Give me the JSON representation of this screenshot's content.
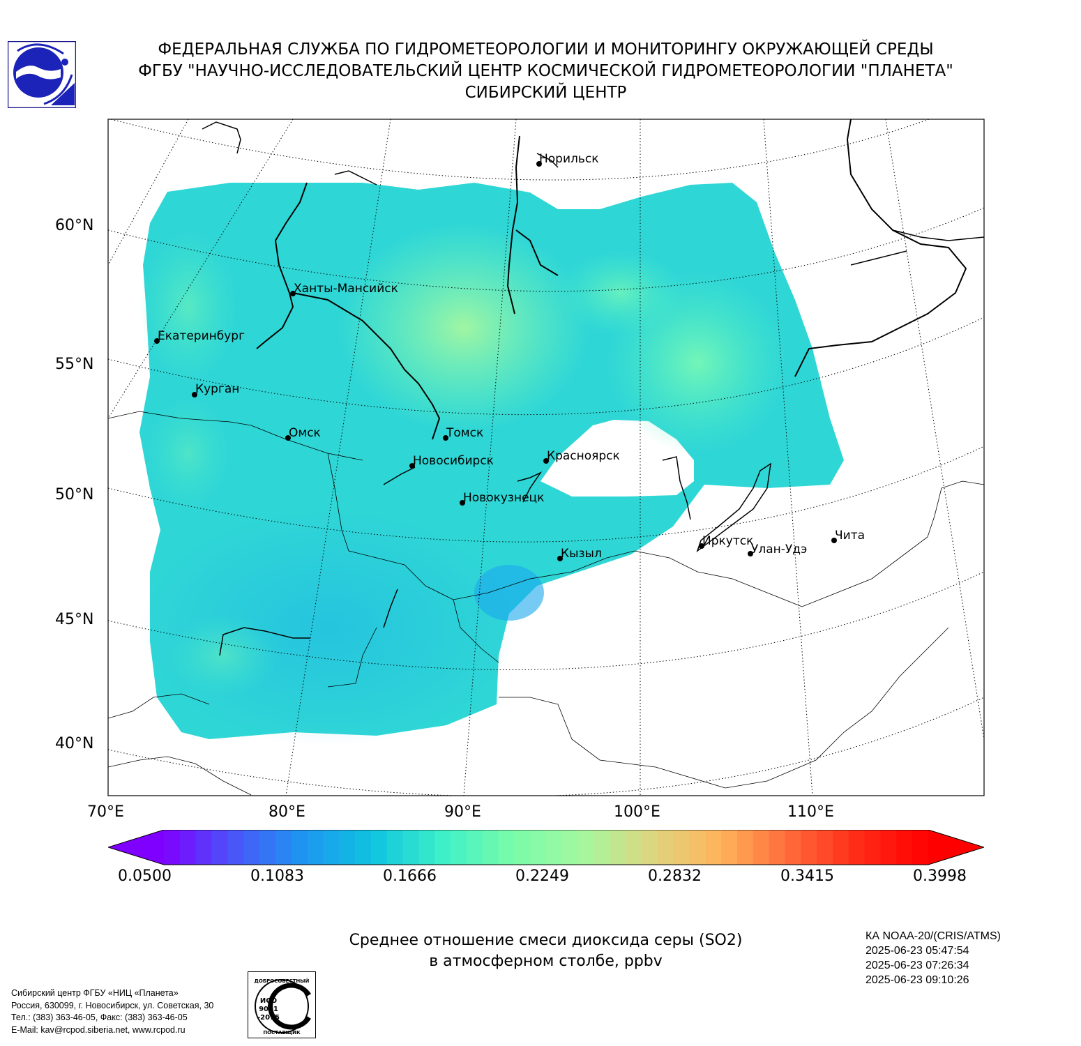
{
  "header": {
    "line1": "ФЕДЕРАЛЬНАЯ СЛУЖБА ПО ГИДРОМЕТЕОРОЛОГИИ И МОНИТОРИНГУ ОКРУЖАЮЩЕЙ СРЕДЫ",
    "line2": "ФГБУ \"НАУЧНО-ИССЛЕДОВАТЕЛЬСКИЙ ЦЕНТР КОСМИЧЕСКОЙ ГИДРОМЕТЕОРОЛОГИИ \"ПЛАНЕТА\"",
    "line3": "СИБИРСКИЙ ЦЕНТР"
  },
  "map": {
    "lat_labels": [
      "60°N",
      "55°N",
      "50°N",
      "45°N",
      "40°N"
    ],
    "lon_labels": [
      "70°E",
      "80°E",
      "90°E",
      "100°E",
      "110°E"
    ],
    "cities": [
      {
        "name": "Норильск"
      },
      {
        "name": "Ханты-Мансийск"
      },
      {
        "name": "Екатеринбург"
      },
      {
        "name": "Курган"
      },
      {
        "name": "Омск"
      },
      {
        "name": "Томск"
      },
      {
        "name": "Новосибирск"
      },
      {
        "name": "Красноярск"
      },
      {
        "name": "Новокузнецк"
      },
      {
        "name": "Кызыл"
      },
      {
        "name": "Иркутск"
      },
      {
        "name": "Улан-Удэ"
      },
      {
        "name": "Чита"
      }
    ],
    "palette": [
      "#7f00ff",
      "#4a55f9",
      "#1d96f0",
      "#0fc4e0",
      "#3cf0c8",
      "#78fcaa",
      "#a3f8a0",
      "#dcd780",
      "#ffb45a",
      "#ff6a3a",
      "#ff2a16",
      "#ff0000"
    ]
  },
  "colorbar": {
    "ticks": [
      "0.0500",
      "0.1083",
      "0.1666",
      "0.2249",
      "0.2832",
      "0.3415",
      "0.3998"
    ]
  },
  "caption": {
    "line1": "Среднее отношение смеси диоксида серы (SO2)",
    "line2": "в атмосферном столбе, ppbv"
  },
  "satellite": {
    "name": "КА NOAA-20/(CRIS/ATMS)",
    "t1": "2025-06-23 05:47:54",
    "t2": "2025-06-23 07:26:34",
    "t3": "2025-06-23 09:10:26"
  },
  "footer": {
    "line1": "Сибирский центр ФГБУ «НИЦ «Планета»",
    "line2": "Россия, 630099, г. Новосибирск, ул. Советская, 30",
    "line3": "Тел.: (383) 363-46-05, Факс: (383) 363-46-05",
    "line4": "E-Mail: kav@rcpod.siberia.net, www.rcpod.ru"
  },
  "iso": {
    "top": "ДОБРОСОВЕСТНЫЙ",
    "mid1": "ИСО",
    "mid2": "9001",
    "mid3": "-2015",
    "bottom": "ПОСТАВЩИК"
  }
}
